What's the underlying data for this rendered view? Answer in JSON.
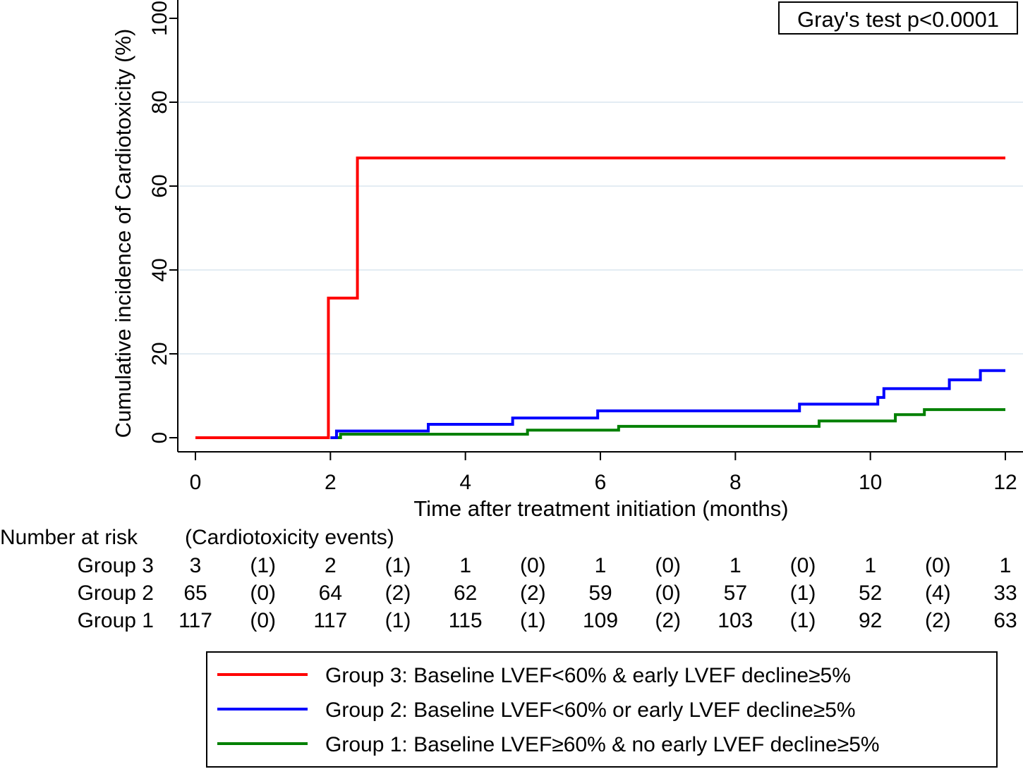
{
  "chart_data": {
    "type": "line",
    "subtype": "step-cumulative-incidence",
    "title": "",
    "xlabel": "Time after treatment initiation (months)",
    "ylabel": "Cumulative incidence of Cardiotoxicity (%)",
    "xlim": [
      0,
      12
    ],
    "ylim": [
      0,
      100
    ],
    "xticks": [
      "0",
      "2",
      "4",
      "6",
      "8",
      "10",
      "12"
    ],
    "yticks": [
      "0",
      "20",
      "40",
      "60",
      "80",
      "100"
    ],
    "grid": true,
    "annotation": "Gray's test p<0.0001",
    "series": [
      {
        "name": "Group 3: Baseline LVEF<60% & early LVEF decline≥5%",
        "color": "#ff0000",
        "x": [
          0,
          1.97,
          2.4,
          12
        ],
        "y": [
          0,
          33.3,
          66.7,
          66.7
        ]
      },
      {
        "name": "Group 2: Baseline LVEF<60% or early LVEF decline≥5%",
        "color": "#0000ff",
        "x": [
          2.0,
          2.09,
          3.45,
          4.7,
          5.96,
          8.95,
          10.11,
          10.2,
          11.17,
          11.63,
          12
        ],
        "y": [
          0,
          1.6,
          3.2,
          4.7,
          6.4,
          8.0,
          9.6,
          11.7,
          13.8,
          16.0,
          16.0
        ]
      },
      {
        "name": "Group 1: Baseline LVEF≥60% & no early LVEF decline≥5%",
        "color": "#008000",
        "x": [
          2.09,
          2.15,
          4.92,
          6.27,
          9.24,
          10.37,
          10.8,
          12
        ],
        "y": [
          0,
          0.85,
          1.8,
          2.7,
          4.0,
          5.5,
          6.7,
          6.7
        ]
      }
    ],
    "legend_position": "bottom"
  },
  "risk_table": {
    "title": "Number at risk",
    "subtitle": "(Cardiotoxicity events)",
    "rows": [
      {
        "label": "Group 3",
        "cells": [
          "3",
          "(1)",
          "2",
          "(1)",
          "1",
          "(0)",
          "1",
          "(0)",
          "1",
          "(0)",
          "1",
          "(0)",
          "1"
        ]
      },
      {
        "label": "Group 2",
        "cells": [
          "65",
          "(0)",
          "64",
          "(2)",
          "62",
          "(2)",
          "59",
          "(0)",
          "57",
          "(1)",
          "52",
          "(4)",
          "33"
        ]
      },
      {
        "label": "Group 1",
        "cells": [
          "117",
          "(0)",
          "117",
          "(1)",
          "115",
          "(1)",
          "109",
          "(2)",
          "103",
          "(1)",
          "92",
          "(2)",
          "63"
        ]
      }
    ]
  }
}
